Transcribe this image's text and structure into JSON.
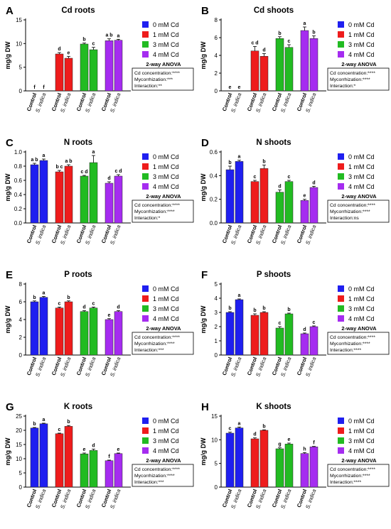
{
  "groups": [
    "Control",
    "S. indica",
    "Control",
    "S. indica",
    "Control",
    "S. indica",
    "Control",
    "S. indica"
  ],
  "legend": [
    "0 mM Cd",
    "1 mM Cd",
    "3 mM Cd",
    "4 mM Cd"
  ],
  "colors": [
    "#1f1ff0",
    "#ee1c1c",
    "#22bb22",
    "#a52cf0"
  ],
  "anova_title": "2-way ANOVA",
  "chart_data": [
    {
      "letter": "A",
      "title": "Cd roots",
      "type": "bar",
      "ylabel": "mg/g DW",
      "ylim": [
        0,
        15
      ],
      "yticks": [
        0,
        5,
        10,
        15
      ],
      "values": [
        0,
        0,
        7.8,
        6.9,
        9.9,
        8.7,
        10.6,
        10.7
      ],
      "errors": [
        0,
        0,
        0.3,
        0.4,
        0.2,
        0.5,
        0.4,
        0.2
      ],
      "sig": [
        "f",
        "f",
        "d",
        "e",
        "b",
        "c",
        "a b",
        "a"
      ],
      "anova": [
        "Cd concentration:****",
        "Mycorrhization:***",
        "Interaction:**"
      ]
    },
    {
      "letter": "B",
      "title": "Cd shoots",
      "type": "bar",
      "ylabel": "mg/g DW",
      "ylim": [
        0,
        8
      ],
      "yticks": [
        0,
        2,
        4,
        6,
        8
      ],
      "values": [
        0,
        0,
        4.5,
        3.9,
        5.9,
        4.9,
        6.8,
        5.9
      ],
      "errors": [
        0,
        0,
        0.5,
        0.3,
        0.2,
        0.3,
        0.4,
        0.3
      ],
      "sig": [
        "e",
        "e",
        "c d",
        "d",
        "b",
        "c",
        "a",
        "b"
      ],
      "anova": [
        "Cd concentration:****",
        "Mycorrhization:****",
        "Interaction:*"
      ]
    },
    {
      "letter": "C",
      "title": "N roots",
      "type": "bar",
      "ylabel": "mg/g DW",
      "ylim": [
        0,
        1.0
      ],
      "yticks": [
        0.0,
        0.2,
        0.4,
        0.6,
        0.8,
        1.0
      ],
      "values": [
        0.82,
        0.88,
        0.72,
        0.8,
        0.66,
        0.85,
        0.56,
        0.66
      ],
      "errors": [
        0.02,
        0.02,
        0.02,
        0.02,
        0.01,
        0.1,
        0.02,
        0.02
      ],
      "sig": [
        "a b",
        "a",
        "b c",
        "a b",
        "c d",
        "a",
        "d",
        "c d"
      ],
      "anova": [
        "Cd concentration:****",
        "Mycorrhization:****",
        "Interaction:*"
      ]
    },
    {
      "letter": "D",
      "title": "N shoots",
      "type": "bar",
      "ylabel": "mg/g DW",
      "ylim": [
        0,
        0.6
      ],
      "yticks": [
        0.0,
        0.2,
        0.4,
        0.6
      ],
      "values": [
        0.45,
        0.52,
        0.35,
        0.46,
        0.26,
        0.35,
        0.19,
        0.3
      ],
      "errors": [
        0.03,
        0.01,
        0.01,
        0.03,
        0.02,
        0.01,
        0.01,
        0.01
      ],
      "sig": [
        "b",
        "a",
        "c",
        "b",
        "d",
        "c",
        "e",
        "d"
      ],
      "anova": [
        "Cd concentration:****",
        "Mycorrhization:****",
        "Interaction:ns"
      ]
    },
    {
      "letter": "E",
      "title": "P roots",
      "type": "bar",
      "ylabel": "mg/g DW",
      "ylim": [
        0,
        8
      ],
      "yticks": [
        0,
        2,
        4,
        6,
        8
      ],
      "values": [
        6.0,
        6.5,
        5.3,
        6.0,
        4.9,
        5.3,
        4.0,
        4.9
      ],
      "errors": [
        0.1,
        0.1,
        0.1,
        0.1,
        0.1,
        0.1,
        0.1,
        0.1
      ],
      "sig": [
        "b",
        "a",
        "c",
        "b",
        "d",
        "c",
        "e",
        "d"
      ],
      "anova": [
        "Cd concentration:****",
        "Mycorrhization:****",
        "Interaction:***"
      ]
    },
    {
      "letter": "F",
      "title": "P shoots",
      "type": "bar",
      "ylabel": "mg/g DW",
      "ylim": [
        0,
        5
      ],
      "yticks": [
        0,
        1,
        2,
        3,
        4,
        5
      ],
      "values": [
        3.0,
        3.9,
        2.8,
        3.0,
        1.9,
        2.9,
        1.5,
        2.0
      ],
      "errors": [
        0.05,
        0.05,
        0.1,
        0.05,
        0.1,
        0.05,
        0.05,
        0.05
      ],
      "sig": [
        "b",
        "a",
        "b",
        "b",
        "c",
        "b",
        "d",
        "c"
      ],
      "anova": [
        "Cd concentration:****",
        "Mycorrhization:****",
        "Interaction:****"
      ]
    },
    {
      "letter": "G",
      "title": "K roots",
      "type": "bar",
      "ylabel": "mg/g DW",
      "ylim": [
        0,
        25
      ],
      "yticks": [
        0,
        5,
        10,
        15,
        20,
        25
      ],
      "values": [
        20.8,
        22.3,
        18.8,
        21.4,
        11.7,
        12.9,
        9.3,
        11.8
      ],
      "errors": [
        0.2,
        0.2,
        0.2,
        0.3,
        0.3,
        0.5,
        0.2,
        0.2
      ],
      "sig": [
        "b",
        "a",
        "c",
        "b",
        "e",
        "d",
        "f",
        "e"
      ],
      "anova": [
        "Cd concentration:****",
        "Mycorrhization:****",
        "Interaction:***"
      ]
    },
    {
      "letter": "H",
      "title": "K shoots",
      "type": "bar",
      "ylabel": "mg/g DW",
      "ylim": [
        0,
        15
      ],
      "yticks": [
        0,
        5,
        10,
        15
      ],
      "values": [
        11.4,
        12.5,
        10.2,
        12.0,
        8.1,
        9.1,
        7.1,
        8.5
      ],
      "errors": [
        0.2,
        0.2,
        0.2,
        0.1,
        0.2,
        0.2,
        0.2,
        0.1
      ],
      "sig": [
        "c",
        "a",
        "d",
        "b",
        "g",
        "e",
        "h",
        "f"
      ],
      "anova": [
        "Cd concentration:****",
        "Mycorrhization:****",
        "Interaction:****"
      ]
    }
  ]
}
